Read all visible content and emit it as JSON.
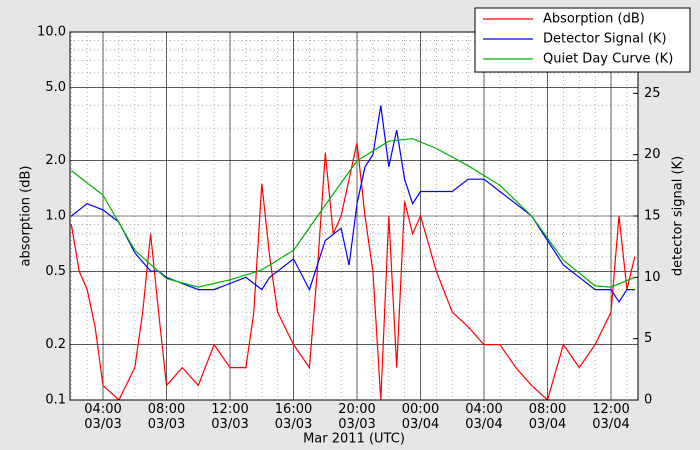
{
  "chart_data": {
    "type": "line",
    "xlabel": "Mar 2011 (UTC)",
    "ylabel": "absorption (dB)",
    "y2label": "detector signal (K)",
    "xlim": [
      1.92,
      37.7
    ],
    "xticks": [
      {
        "value": 4,
        "label": "04:00\n03/03"
      },
      {
        "value": 8,
        "label": "08:00\n03/03"
      },
      {
        "value": 12,
        "label": "12:00\n03/03"
      },
      {
        "value": 16,
        "label": "16:00\n03/03"
      },
      {
        "value": 20,
        "label": "20:00\n03/03"
      },
      {
        "value": 24,
        "label": "00:00\n03/04"
      },
      {
        "value": 28,
        "label": "04:00\n03/04"
      },
      {
        "value": 32,
        "label": "08:00\n03/04"
      },
      {
        "value": 36,
        "label": "12:00\n03/04"
      }
    ],
    "ylim": [
      0.1,
      10
    ],
    "yscale": "log",
    "yticks": [
      0.1,
      0.2,
      0.5,
      {
        "value": 1,
        "label": "1.0"
      },
      {
        "value": 2,
        "label": "2.0"
      },
      {
        "value": 5,
        "label": "5.0"
      },
      {
        "value": 10,
        "label": "10.0"
      }
    ],
    "y2lim": [
      0,
      30
    ],
    "y2ticks": [
      0,
      5,
      10,
      15,
      20,
      25
    ],
    "grid": true,
    "legend": "upper right",
    "series": [
      {
        "name": "Absorption (dB)",
        "color": "#ff0000",
        "x": [
          2,
          2.5,
          3,
          3.5,
          4,
          5,
          6,
          6.5,
          7,
          7.5,
          8,
          9,
          10,
          11,
          12,
          13,
          13.5,
          14,
          14.5,
          15,
          16,
          17,
          17.5,
          18,
          18.5,
          19,
          20,
          20.5,
          21,
          21.5,
          22,
          22.5,
          23,
          23.5,
          24,
          25,
          26,
          27,
          28,
          29,
          30,
          31,
          32,
          33,
          34,
          35,
          36,
          36.5,
          37,
          37.5
        ],
        "values": [
          0.9,
          0.5,
          0.4,
          0.25,
          0.12,
          0.1,
          0.15,
          0.3,
          0.8,
          0.3,
          0.12,
          0.15,
          0.12,
          0.2,
          0.15,
          0.15,
          0.3,
          1.5,
          0.6,
          0.3,
          0.2,
          0.15,
          0.5,
          2.2,
          0.8,
          1.0,
          2.5,
          1.0,
          0.5,
          0.1,
          1.0,
          0.15,
          1.2,
          0.8,
          1.0,
          0.5,
          0.3,
          0.25,
          0.2,
          0.2,
          0.15,
          0.12,
          0.1,
          0.2,
          0.15,
          0.2,
          0.3,
          1.0,
          0.4,
          0.6
        ]
      },
      {
        "name": "Detector Signal (K)",
        "color": "#0000ff",
        "axis": "y2",
        "x": [
          2,
          3,
          4,
          5,
          6,
          7,
          7.5,
          8,
          9,
          10,
          11,
          12,
          13,
          14,
          14.5,
          15,
          16,
          17,
          18,
          19,
          19.5,
          20,
          20.5,
          21,
          21.5,
          22,
          22.5,
          23,
          23.5,
          24,
          25,
          26,
          27,
          28,
          29,
          30,
          31,
          32,
          33,
          34,
          35,
          36,
          36.5,
          37,
          37.5
        ],
        "values": [
          15,
          16,
          15.5,
          14.5,
          12,
          10.5,
          10.5,
          10,
          9.5,
          9,
          9,
          9.5,
          10,
          9,
          10,
          10.5,
          11.5,
          9,
          13,
          14,
          11,
          16,
          19,
          20,
          24,
          19,
          22,
          18,
          16,
          17,
          17,
          17,
          18,
          18,
          17,
          16,
          15,
          13,
          11,
          10,
          9,
          9,
          8,
          9,
          9
        ]
      },
      {
        "name": "Quiet Day Curve (K)",
        "color": "#00b000",
        "axis": "y2",
        "x": [
          2,
          4,
          6,
          8,
          10,
          12,
          14,
          16,
          18,
          20,
          22,
          23.5,
          25,
          27,
          29,
          31,
          33,
          35,
          36,
          37.5
        ],
        "values": [
          18.7,
          16.7,
          12.2,
          9.9,
          9.2,
          9.8,
          10.6,
          12.2,
          15.9,
          19.5,
          21.1,
          21.3,
          20.5,
          19.1,
          17.5,
          15,
          11.4,
          9.3,
          9.2,
          10
        ]
      }
    ]
  }
}
